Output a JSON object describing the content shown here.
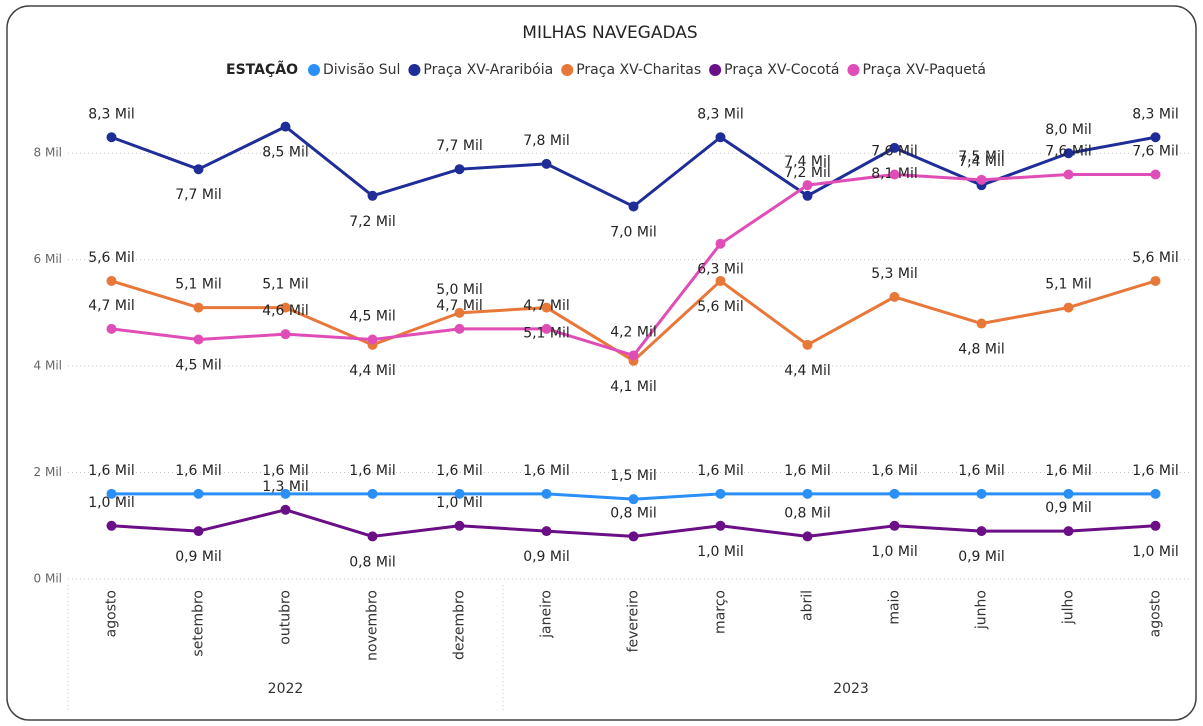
{
  "chart_data": {
    "type": "line",
    "title": "MILHAS NAVEGADAS",
    "legend_title": "ESTAÇÃO",
    "categories": [
      "agosto",
      "setembro",
      "outubro",
      "novembro",
      "dezembro",
      "janeiro",
      "fevereiro",
      "março",
      "abril",
      "maio",
      "junho",
      "julho",
      "agosto"
    ],
    "category_groups": [
      {
        "label": "2022",
        "count": 5
      },
      {
        "label": "2023",
        "count": 8
      }
    ],
    "ylim": [
      0,
      9000
    ],
    "yticks": [
      {
        "value": 0,
        "label": "0 Mil"
      },
      {
        "value": 2000,
        "label": "2 Mil"
      },
      {
        "value": 4000,
        "label": "4 Mil"
      },
      {
        "value": 6000,
        "label": "6 Mil"
      },
      {
        "value": 8000,
        "label": "8 Mil"
      }
    ],
    "grid": true,
    "series": [
      {
        "name": "Divisão Sul",
        "color": "#2a8ff7",
        "values": [
          1600,
          1600,
          1600,
          1600,
          1600,
          1600,
          1500,
          1600,
          1600,
          1600,
          1600,
          1600,
          1600
        ],
        "value_labels": [
          "1,6 Mil",
          "1,6 Mil",
          "1,6 Mil",
          "1,6 Mil",
          "1,6 Mil",
          "1,6 Mil",
          "1,5 Mil",
          "1,6 Mil",
          "1,6 Mil",
          "1,6 Mil",
          "1,6 Mil",
          "1,6 Mil",
          "1,6 Mil"
        ]
      },
      {
        "name": "Praça XV-Araribóia",
        "color": "#1f2d98",
        "values": [
          8300,
          7700,
          8500,
          7200,
          7700,
          7800,
          7000,
          8300,
          7200,
          8100,
          7400,
          8000,
          8300
        ],
        "value_labels": [
          "8,3 Mil",
          "7,7 Mil",
          "8,5 Mil",
          "7,2 Mil",
          "7,7 Mil",
          "7,8 Mil",
          "7,0 Mil",
          "8,3 Mil",
          "7,2 Mil",
          "8,1 Mil",
          "7,4 Mil",
          "8,0 Mil",
          "8,3 Mil"
        ]
      },
      {
        "name": "Praça XV-Charitas",
        "color": "#e8783a",
        "values": [
          5600,
          5100,
          5100,
          4400,
          5000,
          5100,
          4100,
          5600,
          4400,
          5300,
          4800,
          5100,
          5600
        ],
        "value_labels": [
          "5,6 Mil",
          "5,1 Mil",
          "5,1 Mil",
          "4,4 Mil",
          "5,0 Mil",
          "5,1 Mil",
          "4,1 Mil",
          "5,6 Mil",
          "4,4 Mil",
          "5,3 Mil",
          "4,8 Mil",
          "5,1 Mil",
          "5,6 Mil"
        ]
      },
      {
        "name": "Praça XV-Cocotá",
        "color": "#6b0f86",
        "values": [
          1000,
          900,
          1300,
          800,
          1000,
          900,
          800,
          1000,
          800,
          1000,
          900,
          900,
          1000
        ],
        "value_labels": [
          "1,0 Mil",
          "0,9 Mil",
          "1,3 Mil",
          "0,8 Mil",
          "1,0 Mil",
          "0,9 Mil",
          "0,8 Mil",
          "1,0 Mil",
          "0,8 Mil",
          "1,0 Mil",
          "0,9 Mil",
          "0,9 Mil",
          "1,0 Mil"
        ]
      },
      {
        "name": "Praça XV-Paquetá",
        "color": "#e04db6",
        "values": [
          4700,
          4500,
          4600,
          4500,
          4700,
          4700,
          4200,
          6300,
          7400,
          7600,
          7500,
          7600,
          7600
        ],
        "value_labels": [
          "4,7 Mil",
          "4,5 Mil",
          "4,6 Mil",
          "4,5 Mil",
          "4,7 Mil",
          "4,7 Mil",
          "4,2 Mil",
          "6,3 Mil",
          "7,4 Mil",
          "7,6 Mil",
          "7,5 Mil",
          "7,6 Mil",
          "7,6 Mil"
        ]
      }
    ]
  }
}
